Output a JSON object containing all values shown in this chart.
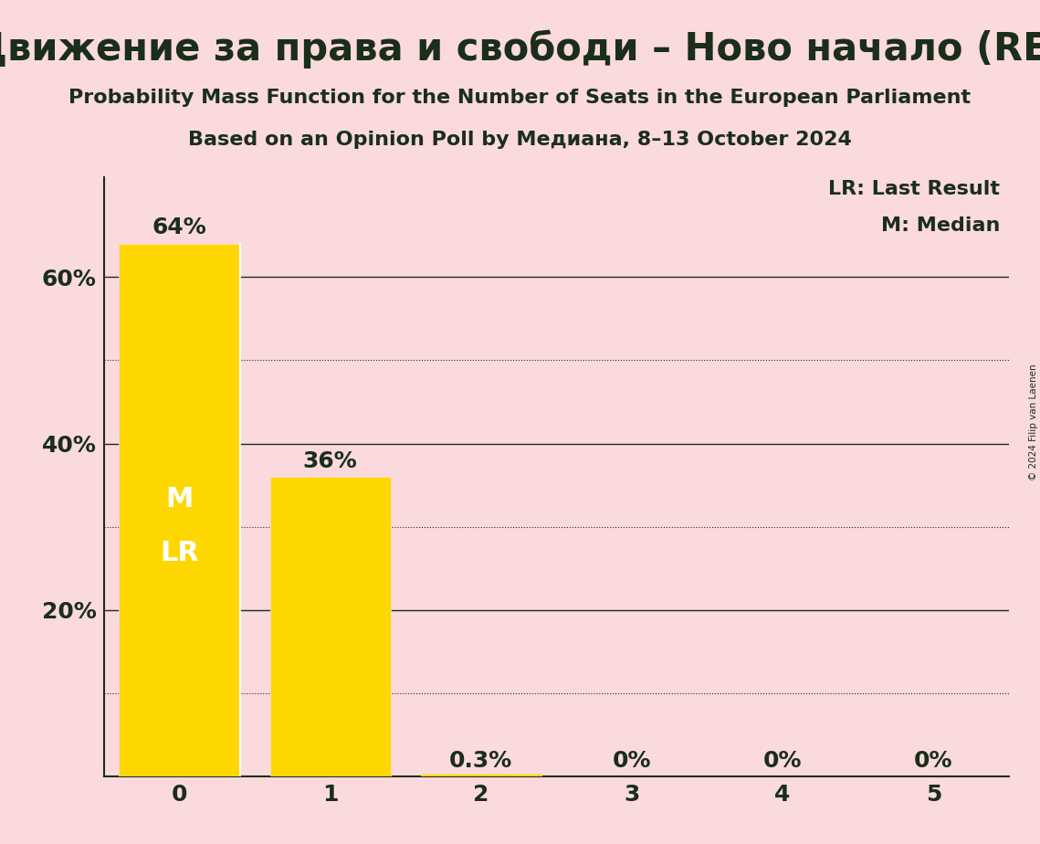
{
  "title": "Движение за права и свободи – Ново начало (RE)",
  "subtitle1": "Probability Mass Function for the Number of Seats in the European Parliament",
  "subtitle2": "Based on an Opinion Poll by Медиана, 8–13 October 2024",
  "categories": [
    0,
    1,
    2,
    3,
    4,
    5
  ],
  "values": [
    0.64,
    0.36,
    0.003,
    0.0,
    0.0,
    0.0
  ],
  "bar_color": "#FFD700",
  "background_color": "#FADADD",
  "text_color": "#1a2e1a",
  "ylim": [
    0,
    0.72
  ],
  "solid_gridlines": [
    0.2,
    0.4,
    0.6
  ],
  "dotted_gridlines": [
    0.1,
    0.3,
    0.5
  ],
  "legend_lr": "LR: Last Result",
  "legend_m": "M: Median",
  "copyright": "© 2024 Filip van Laenen",
  "bar_labels": [
    "64%",
    "36%",
    "0.3%",
    "0%",
    "0%",
    "0%"
  ],
  "title_fontsize": 30,
  "subtitle_fontsize": 16,
  "tick_fontsize": 18,
  "bar_label_fontsize": 18,
  "legend_fontsize": 16,
  "inner_label_fontsize": 22
}
